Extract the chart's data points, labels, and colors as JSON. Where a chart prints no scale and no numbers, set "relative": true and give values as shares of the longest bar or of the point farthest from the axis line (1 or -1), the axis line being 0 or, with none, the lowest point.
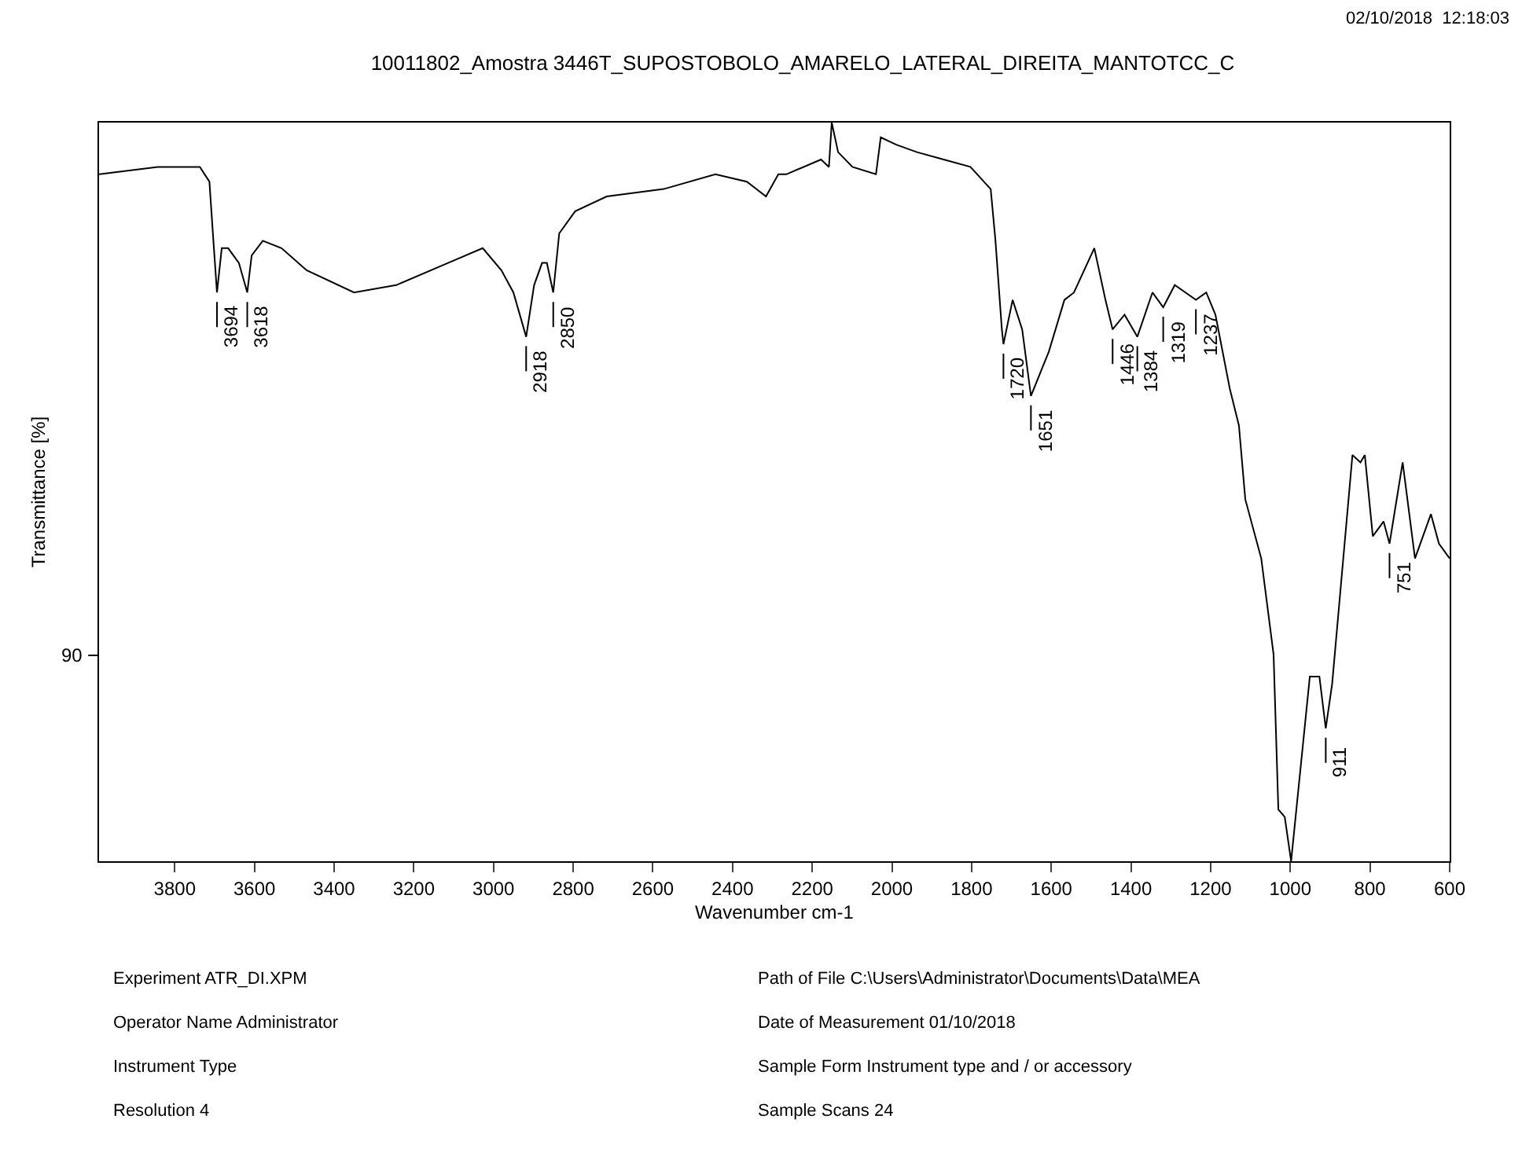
{
  "chart_data": {
    "type": "line",
    "title": "10011802_Amostra 3446T_SUPOSTOBOLO_AMARELO_LATERAL_DIREITA_MANTOTCC_C",
    "xlabel": "Wavenumber cm-1",
    "ylabel": "Transmittance [%]",
    "relative": true,
    "xlim": [
      3990,
      600
    ],
    "xticks": [
      3800,
      3600,
      3400,
      3200,
      3000,
      2800,
      2600,
      2400,
      2200,
      2000,
      1800,
      1600,
      1400,
      1200,
      1000,
      800,
      600
    ],
    "marker": "none",
    "line_style": "solid",
    "series": [
      {
        "color": "#000000",
        "x": [
          3990,
          3843,
          3737,
          3713,
          3703,
          3694,
          3682,
          3666,
          3639,
          3618,
          3607,
          3579,
          3532,
          3469,
          3350,
          3244,
          3114,
          3027,
          2980,
          2950,
          2918,
          2898,
          2878,
          2866,
          2850,
          2835,
          2795,
          2716,
          2573,
          2443,
          2364,
          2316,
          2285,
          2265,
          2178,
          2158,
          2151,
          2135,
          2099,
          2040,
          2028,
          1989,
          1937,
          1870,
          1803,
          1752,
          1740,
          1724,
          1720,
          1697,
          1673,
          1651,
          1606,
          1567,
          1543,
          1492,
          1464,
          1446,
          1416,
          1384,
          1346,
          1319,
          1290,
          1237,
          1211,
          1188,
          1152,
          1129,
          1113,
          1073,
          1042,
          1030,
          1014,
          998,
          951,
          927,
          911,
          895,
          844,
          824,
          813,
          793,
          766,
          751,
          718,
          687,
          647,
          627,
          600
        ],
        "values": [
          0.93,
          0.94,
          0.94,
          0.92,
          0.84,
          0.77,
          0.83,
          0.83,
          0.81,
          0.77,
          0.82,
          0.84,
          0.83,
          0.8,
          0.77,
          0.78,
          0.81,
          0.83,
          0.8,
          0.77,
          0.71,
          0.78,
          0.81,
          0.81,
          0.77,
          0.85,
          0.88,
          0.9,
          0.91,
          0.93,
          0.92,
          0.9,
          0.93,
          0.93,
          0.95,
          0.94,
          1.0,
          0.96,
          0.94,
          0.93,
          0.98,
          0.97,
          0.96,
          0.95,
          0.94,
          0.91,
          0.84,
          0.72,
          0.7,
          0.76,
          0.72,
          0.63,
          0.69,
          0.76,
          0.77,
          0.83,
          0.76,
          0.72,
          0.74,
          0.71,
          0.77,
          0.75,
          0.78,
          0.76,
          0.77,
          0.74,
          0.64,
          0.59,
          0.49,
          0.41,
          0.28,
          0.07,
          0.06,
          0.0,
          0.25,
          0.25,
          0.18,
          0.24,
          0.55,
          0.54,
          0.55,
          0.44,
          0.46,
          0.43,
          0.54,
          0.41,
          0.47,
          0.43,
          0.41
        ]
      }
    ],
    "annotations": [
      "02/10/2018  12:18:03",
      {
        "text": "3694",
        "x": 3694,
        "y": 0.77
      },
      {
        "text": "3618",
        "x": 3618,
        "y": 0.77
      },
      {
        "text": "2918",
        "x": 2918,
        "y": 0.71
      },
      {
        "text": "2850",
        "x": 2850,
        "y": 0.77
      },
      {
        "text": "1720",
        "x": 1720,
        "y": 0.7
      },
      {
        "text": "1651",
        "x": 1651,
        "y": 0.63
      },
      {
        "text": "1446",
        "x": 1446,
        "y": 0.72
      },
      {
        "text": "1384",
        "x": 1384,
        "y": 0.71
      },
      {
        "text": "1319",
        "x": 1319,
        "y": 0.75
      },
      {
        "text": "1237",
        "x": 1237,
        "y": 0.76
      },
      {
        "text": "911",
        "x": 911,
        "y": 0.18
      },
      {
        "text": "751",
        "x": 751,
        "y": 0.43
      },
      "90",
      "Experiment ATR_DI.XPM",
      "Path of File C:\\Users\\Administrator\\Documents\\Data\\MEA",
      "Operator Name Administrator",
      "Date of Measurement 01/10/2018",
      "Instrument Type",
      "Sample Form Instrument type and / or accessory",
      "Resolution 4",
      "Sample Scans 24"
    ]
  }
}
